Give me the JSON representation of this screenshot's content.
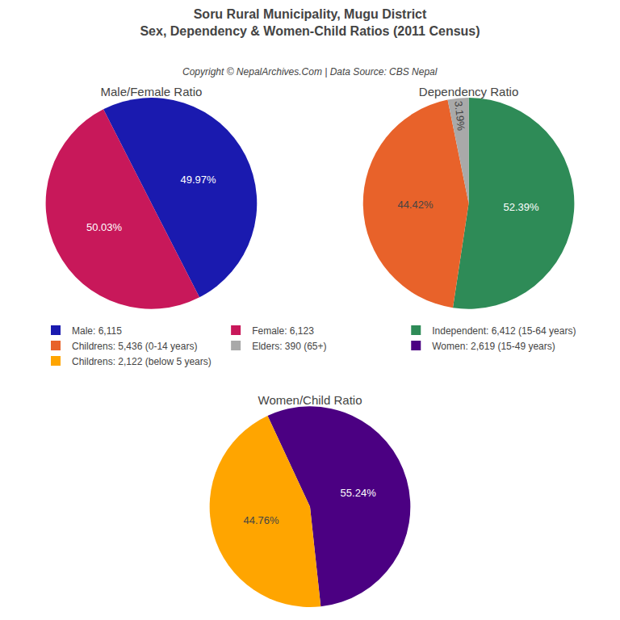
{
  "chart_data": {
    "type": "pie",
    "title": "Soru Rural Municipality, Mugu District",
    "subtitle": "Sex, Dependency & Women-Child Ratios (2011 Census)",
    "annotations": [
      "Copyright © NepalArchives.Com | Data Source: CBS Nepal"
    ],
    "data_labels": true,
    "legend": "center",
    "series": [
      {
        "name": "Male/Female Ratio",
        "categories": [
          "Male: 6,115",
          "Female: 6,123"
        ],
        "values": [
          49.97,
          50.03
        ],
        "value_labels": [
          "49.97%",
          "50.03%"
        ],
        "colors": [
          "#1A1AAF",
          "#C8185A"
        ]
      },
      {
        "name": "Dependency Ratio",
        "categories": [
          "Independent: 6,412 (15-64 years)",
          "Childrens: 5,436 (0-14 years)",
          "Elders: 390 (65+)"
        ],
        "values": [
          52.39,
          44.42,
          3.19
        ],
        "value_labels": [
          "52.39%",
          "44.42%",
          "3.19%"
        ],
        "colors": [
          "#2E8B57",
          "#E8622A",
          "#A9A9A9"
        ]
      },
      {
        "name": "Women/Child Ratio",
        "categories": [
          "Women: 2,619 (15-49 years)",
          "Childrens: 2,122 (below 5 years)"
        ],
        "values": [
          55.24,
          44.76
        ],
        "value_labels": [
          "55.24%",
          "44.76%"
        ],
        "colors": [
          "#4B0082",
          "#FFA500"
        ]
      }
    ]
  }
}
